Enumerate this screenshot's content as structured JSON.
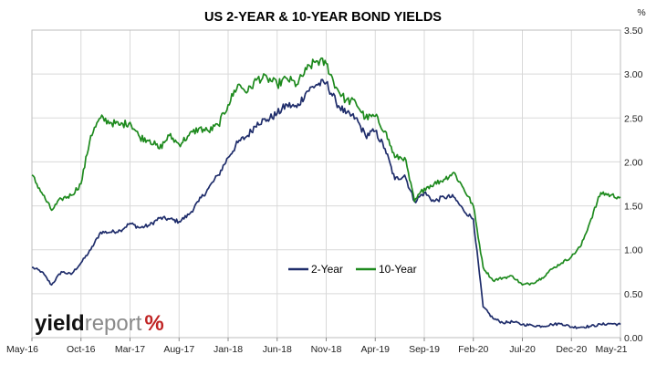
{
  "chart_data": {
    "type": "line",
    "title": "US 2-YEAR & 10-YEAR BOND YIELDS",
    "y_unit": "%",
    "xlabel": "",
    "ylabel": "",
    "y_axis_position": "right",
    "ylim": [
      0,
      3.5
    ],
    "y_ticks": [
      "0.00",
      "0.50",
      "1.00",
      "1.50",
      "2.00",
      "2.50",
      "3.00",
      "3.50"
    ],
    "x_ticks": [
      "May-16",
      "Oct-16",
      "Mar-17",
      "Aug-17",
      "Jan-18",
      "Jun-18",
      "Nov-18",
      "Apr-19",
      "Sep-19",
      "Feb-20",
      "Jul-20",
      "Dec-20",
      "May-21"
    ],
    "grid": true,
    "legend_placement": "center-right",
    "series": [
      {
        "name": "2-Year",
        "color": "#1f2d6b",
        "points": [
          [
            "May-16",
            0.8
          ],
          [
            "Jun-16",
            0.75
          ],
          [
            "Jul-16",
            0.6
          ],
          [
            "Aug-16",
            0.75
          ],
          [
            "Sep-16",
            0.72
          ],
          [
            "Oct-16",
            0.85
          ],
          [
            "Nov-16",
            1.0
          ],
          [
            "Dec-16",
            1.2
          ],
          [
            "Jan-17",
            1.2
          ],
          [
            "Feb-17",
            1.22
          ],
          [
            "Mar-17",
            1.3
          ],
          [
            "Apr-17",
            1.25
          ],
          [
            "May-17",
            1.28
          ],
          [
            "Jun-17",
            1.36
          ],
          [
            "Jul-17",
            1.35
          ],
          [
            "Aug-17",
            1.32
          ],
          [
            "Sep-17",
            1.4
          ],
          [
            "Oct-17",
            1.55
          ],
          [
            "Nov-17",
            1.7
          ],
          [
            "Dec-17",
            1.85
          ],
          [
            "Jan-18",
            2.05
          ],
          [
            "Feb-18",
            2.22
          ],
          [
            "Mar-18",
            2.3
          ],
          [
            "Apr-18",
            2.45
          ],
          [
            "May-18",
            2.48
          ],
          [
            "Jun-18",
            2.55
          ],
          [
            "Jul-18",
            2.65
          ],
          [
            "Aug-18",
            2.62
          ],
          [
            "Sep-18",
            2.8
          ],
          [
            "Oct-18",
            2.88
          ],
          [
            "Nov-18",
            2.9
          ],
          [
            "Dec-18",
            2.68
          ],
          [
            "Jan-19",
            2.55
          ],
          [
            "Feb-19",
            2.5
          ],
          [
            "Mar-19",
            2.3
          ],
          [
            "Apr-19",
            2.35
          ],
          [
            "May-19",
            2.15
          ],
          [
            "Jun-19",
            1.8
          ],
          [
            "Jul-19",
            1.85
          ],
          [
            "Aug-19",
            1.55
          ],
          [
            "Sep-19",
            1.65
          ],
          [
            "Oct-19",
            1.55
          ],
          [
            "Nov-19",
            1.6
          ],
          [
            "Dec-19",
            1.6
          ],
          [
            "Jan-20",
            1.45
          ],
          [
            "Feb-20",
            1.35
          ],
          [
            "Mar-20",
            0.35
          ],
          [
            "Apr-20",
            0.22
          ],
          [
            "May-20",
            0.17
          ],
          [
            "Jun-20",
            0.18
          ],
          [
            "Jul-20",
            0.15
          ],
          [
            "Aug-20",
            0.14
          ],
          [
            "Sep-20",
            0.13
          ],
          [
            "Oct-20",
            0.15
          ],
          [
            "Nov-20",
            0.16
          ],
          [
            "Dec-20",
            0.12
          ],
          [
            "Jan-21",
            0.12
          ],
          [
            "Feb-21",
            0.13
          ],
          [
            "Mar-21",
            0.15
          ],
          [
            "Apr-21",
            0.16
          ],
          [
            "May-21",
            0.15
          ]
        ]
      },
      {
        "name": "10-Year",
        "color": "#1e8a1e",
        "points": [
          [
            "May-16",
            1.85
          ],
          [
            "Jun-16",
            1.65
          ],
          [
            "Jul-16",
            1.45
          ],
          [
            "Aug-16",
            1.58
          ],
          [
            "Sep-16",
            1.62
          ],
          [
            "Oct-16",
            1.75
          ],
          [
            "Nov-16",
            2.3
          ],
          [
            "Dec-16",
            2.5
          ],
          [
            "Jan-17",
            2.45
          ],
          [
            "Feb-17",
            2.42
          ],
          [
            "Mar-17",
            2.45
          ],
          [
            "Apr-17",
            2.28
          ],
          [
            "May-17",
            2.25
          ],
          [
            "Jun-17",
            2.15
          ],
          [
            "Jul-17",
            2.3
          ],
          [
            "Aug-17",
            2.2
          ],
          [
            "Sep-17",
            2.3
          ],
          [
            "Oct-17",
            2.38
          ],
          [
            "Nov-17",
            2.35
          ],
          [
            "Dec-17",
            2.42
          ],
          [
            "Jan-18",
            2.65
          ],
          [
            "Feb-18",
            2.88
          ],
          [
            "Mar-18",
            2.8
          ],
          [
            "Apr-18",
            2.95
          ],
          [
            "May-18",
            2.95
          ],
          [
            "Jun-18",
            2.88
          ],
          [
            "Jul-18",
            2.95
          ],
          [
            "Aug-18",
            2.88
          ],
          [
            "Sep-18",
            3.05
          ],
          [
            "Oct-18",
            3.15
          ],
          [
            "Nov-18",
            3.12
          ],
          [
            "Dec-18",
            2.85
          ],
          [
            "Jan-19",
            2.7
          ],
          [
            "Feb-19",
            2.68
          ],
          [
            "Mar-19",
            2.5
          ],
          [
            "Apr-19",
            2.52
          ],
          [
            "May-19",
            2.35
          ],
          [
            "Jun-19",
            2.05
          ],
          [
            "Jul-19",
            2.05
          ],
          [
            "Aug-19",
            1.55
          ],
          [
            "Sep-19",
            1.7
          ],
          [
            "Oct-19",
            1.75
          ],
          [
            "Nov-19",
            1.8
          ],
          [
            "Dec-19",
            1.88
          ],
          [
            "Jan-20",
            1.7
          ],
          [
            "Feb-20",
            1.5
          ],
          [
            "Mar-20",
            0.8
          ],
          [
            "Apr-20",
            0.65
          ],
          [
            "May-20",
            0.68
          ],
          [
            "Jun-20",
            0.7
          ],
          [
            "Jul-20",
            0.6
          ],
          [
            "Aug-20",
            0.62
          ],
          [
            "Sep-20",
            0.68
          ],
          [
            "Oct-20",
            0.78
          ],
          [
            "Nov-20",
            0.85
          ],
          [
            "Dec-20",
            0.92
          ],
          [
            "Jan-21",
            1.05
          ],
          [
            "Feb-21",
            1.35
          ],
          [
            "Mar-21",
            1.65
          ],
          [
            "Apr-21",
            1.62
          ],
          [
            "May-21",
            1.6
          ]
        ]
      }
    ]
  },
  "logo": {
    "part1": "yield",
    "part2": "report",
    "symbol": "%",
    "colors": {
      "yield": "#111111",
      "report": "#8a8a8a",
      "symbol": "#c02424"
    }
  }
}
